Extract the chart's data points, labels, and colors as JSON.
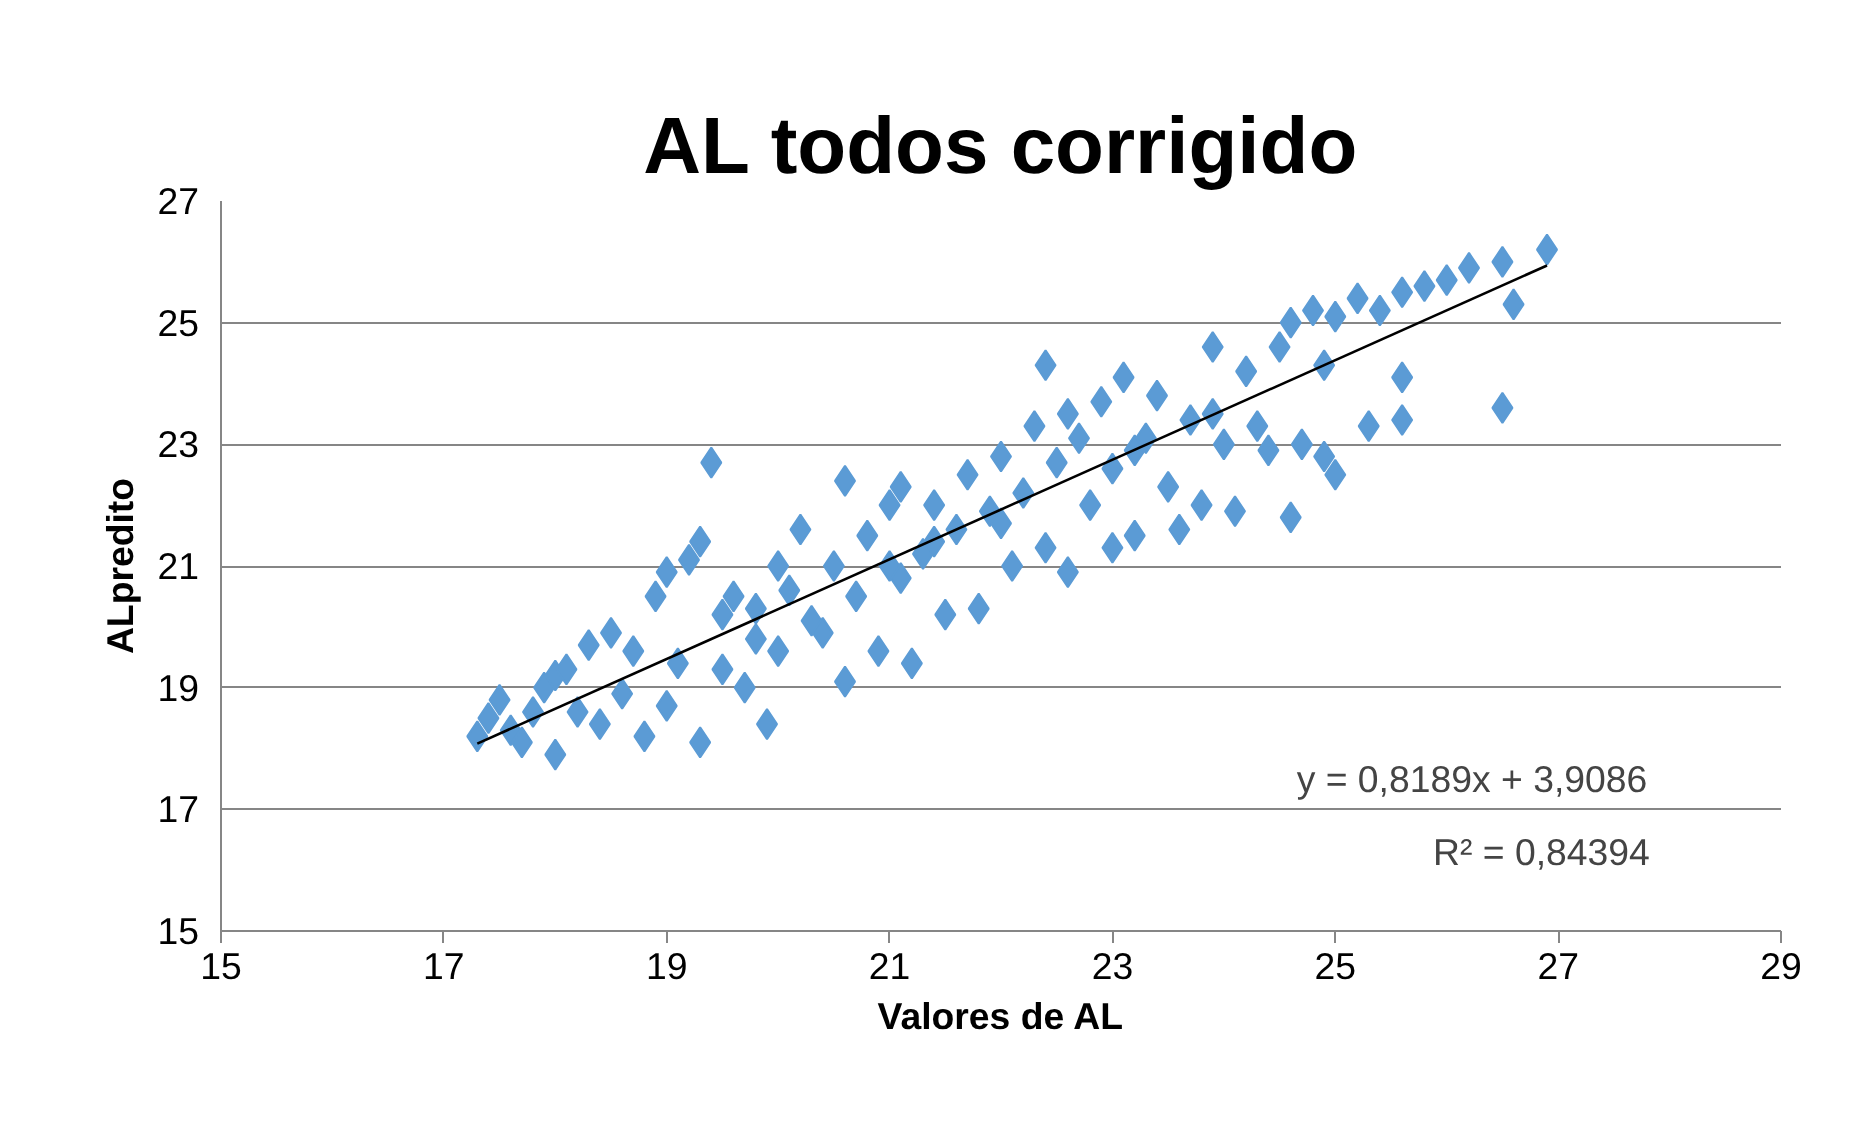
{
  "chart_data": {
    "type": "scatter",
    "title": "AL todos corrigido",
    "xlabel": "Valores de AL",
    "ylabel": "ALpredito",
    "xlim": [
      15,
      29
    ],
    "xticks": [
      15,
      17,
      19,
      21,
      23,
      25,
      27,
      29
    ],
    "ylim": [
      15,
      27
    ],
    "yticks": [
      15,
      17,
      19,
      21,
      23,
      25,
      27
    ],
    "grid": "y",
    "series": [
      {
        "color": "#5b9bd5",
        "marker": "diamond",
        "x": [
          17.3,
          17.4,
          17.5,
          17.6,
          17.7,
          17.8,
          17.9,
          18.0,
          18.0,
          18.2,
          18.3,
          18.4,
          18.5,
          18.6,
          18.7,
          18.8,
          18.9,
          19.0,
          19.0,
          19.1,
          19.2,
          19.3,
          19.3,
          19.4,
          19.5,
          19.6,
          19.7,
          19.8,
          19.9,
          20.0,
          20.0,
          20.2,
          20.3,
          20.4,
          20.5,
          20.6,
          20.6,
          20.7,
          20.8,
          20.9,
          21.0,
          21.1,
          21.1,
          21.2,
          21.3,
          21.4,
          21.5,
          21.6,
          21.7,
          21.8,
          21.9,
          22.0,
          22.1,
          22.2,
          22.3,
          22.4,
          22.4,
          22.5,
          22.6,
          22.7,
          22.8,
          22.9,
          23.0,
          23.0,
          23.1,
          23.2,
          23.3,
          23.4,
          23.5,
          23.6,
          23.7,
          23.8,
          23.9,
          24.0,
          24.1,
          24.2,
          24.3,
          24.4,
          24.5,
          24.6,
          24.6,
          24.7,
          24.8,
          24.9,
          24.9,
          25.0,
          25.0,
          25.2,
          25.3,
          25.4,
          25.6,
          25.6,
          25.6,
          25.8,
          26.0,
          26.2,
          26.5,
          26.6,
          26.5,
          26.9,
          19.5,
          20.1,
          21.4,
          22.0,
          22.6,
          23.2,
          23.9,
          18.1,
          19.8,
          21.0
        ],
        "values": [
          18.2,
          18.5,
          18.8,
          18.3,
          18.1,
          18.6,
          19.0,
          17.9,
          19.2,
          18.6,
          19.7,
          18.4,
          19.9,
          18.9,
          19.6,
          18.2,
          20.5,
          18.7,
          20.9,
          19.4,
          21.1,
          18.1,
          21.4,
          22.7,
          19.3,
          20.5,
          19.0,
          20.3,
          18.4,
          19.6,
          21.0,
          21.6,
          20.1,
          19.9,
          21.0,
          22.4,
          19.1,
          20.5,
          21.5,
          19.6,
          22.0,
          20.8,
          22.3,
          19.4,
          21.2,
          22.0,
          20.2,
          21.6,
          22.5,
          20.3,
          21.9,
          22.8,
          21.0,
          22.2,
          23.3,
          24.3,
          21.3,
          22.7,
          20.9,
          23.1,
          22.0,
          23.7,
          21.3,
          22.6,
          24.1,
          21.5,
          23.1,
          23.8,
          22.3,
          21.6,
          23.4,
          22.0,
          24.6,
          23.0,
          21.9,
          24.2,
          23.3,
          22.9,
          24.6,
          21.8,
          25.0,
          23.0,
          25.2,
          22.8,
          24.3,
          22.5,
          25.1,
          25.4,
          23.3,
          25.2,
          25.5,
          24.1,
          23.4,
          25.6,
          25.7,
          25.9,
          26.0,
          25.3,
          23.6,
          26.2,
          20.2,
          20.6,
          21.4,
          21.7,
          23.5,
          22.9,
          23.5,
          19.3,
          19.8,
          21.0
        ]
      },
      {
        "color": "#000000",
        "type": "line",
        "x": [
          17.3,
          26.9
        ],
        "values": [
          18.08,
          25.94
        ]
      }
    ],
    "annotations": [
      "y = 0,8189x + 3,9086",
      "R² = 0,84394"
    ]
  }
}
